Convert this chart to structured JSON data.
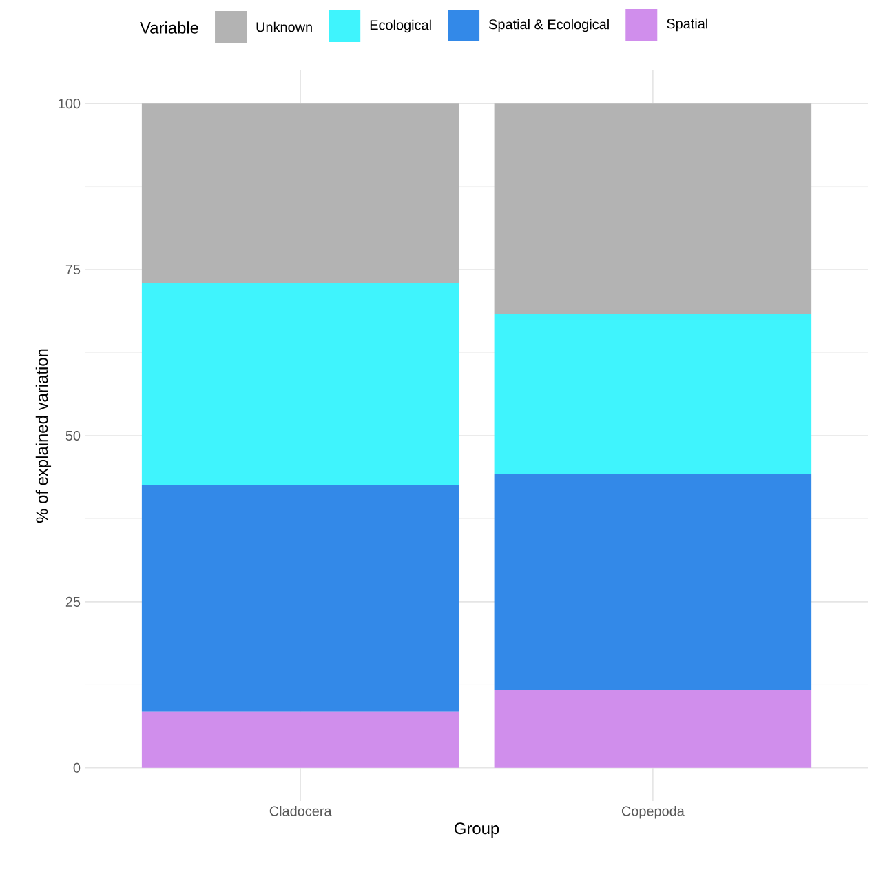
{
  "chart_data": {
    "type": "bar",
    "stacked": true,
    "xlabel": "Group",
    "ylabel": "% of explained variation",
    "legend_title": "Variable",
    "categories": [
      "Cladocera",
      "Copepoda"
    ],
    "series": [
      {
        "name": "Spatial",
        "color": "#d08eec",
        "values": [
          8.4,
          11.7
        ]
      },
      {
        "name": "Spatial & Ecological",
        "color": "#3389e8",
        "values": [
          34.2,
          32.5
        ]
      },
      {
        "name": "Ecological",
        "color": "#3ff4fd",
        "values": [
          30.4,
          24.1
        ]
      },
      {
        "name": "Unknown",
        "color": "#b3b3b3",
        "values": [
          27.0,
          31.7
        ]
      }
    ],
    "ylim": [
      -5,
      105
    ],
    "yticks": [
      0,
      25,
      50,
      75,
      100
    ],
    "grid": true,
    "legend": "top"
  }
}
